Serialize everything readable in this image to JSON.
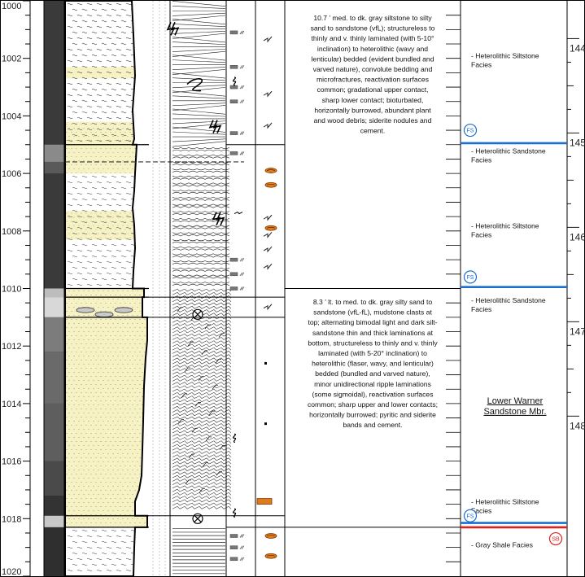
{
  "depth_axis": {
    "labels": [
      "1000",
      "1002",
      "1004",
      "1006",
      "1008",
      "1010",
      "1012",
      "1014",
      "1016",
      "1018",
      "1020"
    ]
  },
  "meter_axis": {
    "labels": [
      "144",
      "145",
      "146",
      "147",
      "148"
    ]
  },
  "descriptions": [
    {
      "id": "upper",
      "lines": [
        "10.7 ’  med. to dk. gray siltstone to silty",
        "sand to sandstone (vfL); structureless to",
        "thinly and v. thinly laminated (with 5-10°",
        "inclination) to heterolithic (wavy and",
        "lenticular) bedded (evident bundled and",
        "varved nature), convolute bedding and",
        "microfractures, reactivation surfaces",
        "common; gradational upper contact,",
        "sharp lower contact; bioturbated,",
        "horizontally burrowed, abundant plant",
        "and wood debris; siderite nodules and",
        "cement."
      ]
    },
    {
      "id": "lower",
      "lines": [
        "8.3 ’  lt. to med. to dk. gray silty sand to",
        "sandstone (vfL-fL), mudstone clasts at",
        "top; alternating bimodal light and dark silt-",
        "sandstone thin and thick laminations at",
        "bottom, structureless to thinly and v. thinly",
        "laminated (with 5-20° inclination) to",
        "heterolithic (flaser, wavy, and lenticular)",
        "bedded (bundled and varved nature),",
        "minor unidirectional ripple laminations",
        "(some sigmoidal), reactivation surfaces",
        "common; sharp upper and lower contacts;",
        "horizontally burrowed; pyritic and siderite",
        "bands and cement."
      ]
    }
  ],
  "facies": [
    {
      "id": "f1",
      "lines": [
        "-  Heterolithic Siltstone",
        "Facies"
      ]
    },
    {
      "id": "f2",
      "lines": [
        "-  Heterolithic Sandstone",
        "Facies"
      ]
    },
    {
      "id": "f3",
      "lines": [
        "-  Heterolithic Siltstone",
        "Facies"
      ]
    },
    {
      "id": "f4",
      "lines": [
        "-  Heterolithic Sandstone",
        "Facies"
      ]
    },
    {
      "id": "f5",
      "lines": [
        "-  Heterolithic Siltstone",
        "Facies"
      ]
    },
    {
      "id": "f6",
      "lines": [
        "-  Gray Shale Facies"
      ]
    }
  ],
  "member": {
    "lines": [
      "Lower Warner",
      "Sandstone Mbr."
    ]
  },
  "surfaces": [
    {
      "id": "fs1",
      "label": "FS",
      "color": "#1a6fd0"
    },
    {
      "id": "fs2",
      "label": "FS",
      "color": "#1a6fd0"
    },
    {
      "id": "fs3",
      "label": "FS",
      "color": "#1a6fd0"
    },
    {
      "id": "sb1",
      "label": "SB",
      "color": "#e0201c"
    }
  ],
  "colors": {
    "sand_fill": "#f7f2c4",
    "fs_line": "#1a6fd0",
    "sb_line": "#e0201c",
    "siderite": "#e07a1a"
  }
}
